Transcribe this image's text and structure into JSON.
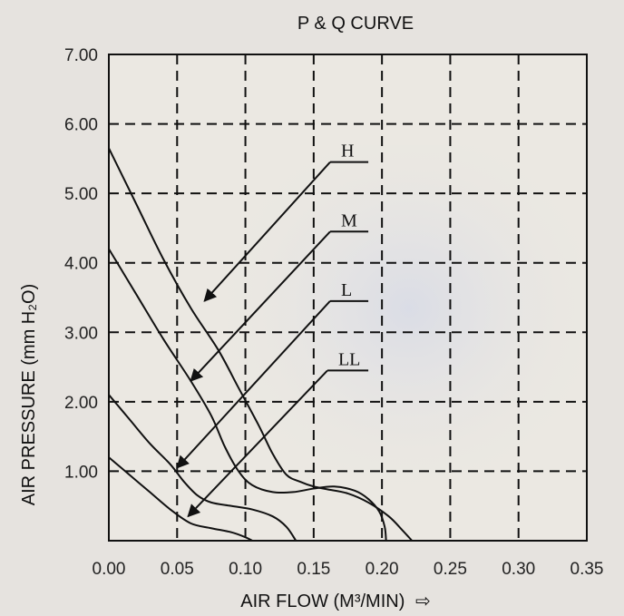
{
  "chart_data": {
    "type": "line",
    "title": "P & Q CURVE",
    "xlabel": "AIR FLOW (M³/MIN)",
    "xlabel_arrow": "⇨",
    "ylabel": "AIR PRESSURE (mm H₂O)",
    "xlim": [
      0,
      0.35
    ],
    "ylim": [
      0,
      7
    ],
    "x_ticks": [
      "0.00",
      "0.05",
      "0.10",
      "0.15",
      "0.20",
      "0.25",
      "0.30",
      "0.35"
    ],
    "y_ticks": [
      "0.00",
      "1.00",
      "2.00",
      "3.00",
      "4.00",
      "5.00",
      "6.00",
      "7.00"
    ],
    "grid": true,
    "series": [
      {
        "name": "H",
        "color": "#111111",
        "points": [
          [
            0.0,
            5.65
          ],
          [
            0.02,
            4.85
          ],
          [
            0.04,
            4.05
          ],
          [
            0.06,
            3.35
          ],
          [
            0.08,
            2.75
          ],
          [
            0.095,
            2.2
          ],
          [
            0.11,
            1.65
          ],
          [
            0.12,
            1.25
          ],
          [
            0.13,
            0.95
          ],
          [
            0.14,
            0.85
          ],
          [
            0.15,
            0.78
          ],
          [
            0.16,
            0.74
          ],
          [
            0.175,
            0.68
          ],
          [
            0.19,
            0.55
          ],
          [
            0.205,
            0.35
          ],
          [
            0.215,
            0.15
          ],
          [
            0.222,
            0.0
          ]
        ]
      },
      {
        "name": "M",
        "color": "#111111",
        "points": [
          [
            0.0,
            4.2
          ],
          [
            0.02,
            3.55
          ],
          [
            0.04,
            2.9
          ],
          [
            0.06,
            2.3
          ],
          [
            0.075,
            1.8
          ],
          [
            0.085,
            1.35
          ],
          [
            0.095,
            1.0
          ],
          [
            0.105,
            0.8
          ],
          [
            0.12,
            0.7
          ],
          [
            0.135,
            0.7
          ],
          [
            0.15,
            0.75
          ],
          [
            0.165,
            0.78
          ],
          [
            0.18,
            0.72
          ],
          [
            0.19,
            0.6
          ],
          [
            0.198,
            0.42
          ],
          [
            0.202,
            0.2
          ],
          [
            0.203,
            0.0
          ]
        ]
      },
      {
        "name": "L",
        "color": "#111111",
        "points": [
          [
            0.0,
            2.1
          ],
          [
            0.015,
            1.75
          ],
          [
            0.03,
            1.4
          ],
          [
            0.045,
            1.1
          ],
          [
            0.055,
            0.85
          ],
          [
            0.065,
            0.65
          ],
          [
            0.075,
            0.55
          ],
          [
            0.09,
            0.5
          ],
          [
            0.105,
            0.45
          ],
          [
            0.12,
            0.35
          ],
          [
            0.13,
            0.2
          ],
          [
            0.137,
            0.0
          ]
        ]
      },
      {
        "name": "LL",
        "color": "#111111",
        "points": [
          [
            0.0,
            1.2
          ],
          [
            0.015,
            0.95
          ],
          [
            0.03,
            0.7
          ],
          [
            0.045,
            0.45
          ],
          [
            0.06,
            0.25
          ],
          [
            0.075,
            0.18
          ],
          [
            0.09,
            0.12
          ],
          [
            0.1,
            0.05
          ],
          [
            0.105,
            0.0
          ]
        ]
      }
    ],
    "annotations": [
      {
        "label": "H",
        "text_at": [
          0.17,
          5.45
        ],
        "shelf_end": 0.19,
        "arrow_to": [
          0.07,
          3.45
        ]
      },
      {
        "label": "M",
        "text_at": [
          0.17,
          4.45
        ],
        "shelf_end": 0.19,
        "arrow_to": [
          0.06,
          2.3
        ]
      },
      {
        "label": "L",
        "text_at": [
          0.17,
          3.45
        ],
        "shelf_end": 0.19,
        "arrow_to": [
          0.05,
          1.05
        ]
      },
      {
        "label": "LL",
        "text_at": [
          0.168,
          2.45
        ],
        "shelf_end": 0.19,
        "arrow_to": [
          0.058,
          0.35
        ]
      }
    ]
  }
}
